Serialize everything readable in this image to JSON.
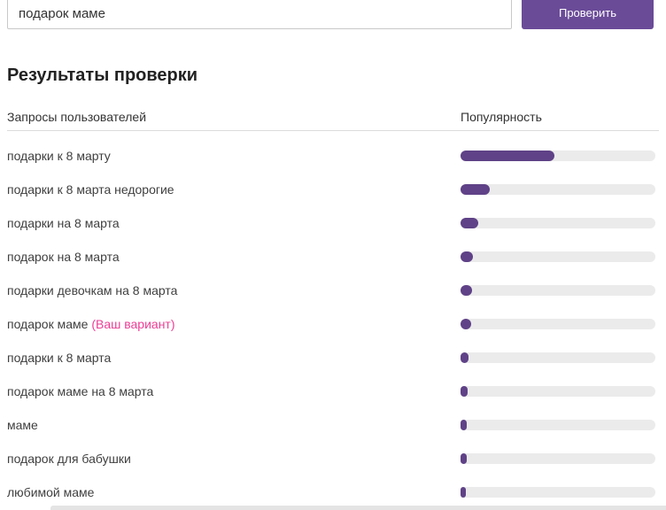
{
  "colors": {
    "button_purple": "#6a4b98",
    "bar_fill_purple": "#5f4287",
    "bar_track_gray": "#ebebeb",
    "variant_pink": "#ed3e96"
  },
  "search": {
    "value": "подарок маме",
    "button_label": "Проверить"
  },
  "results": {
    "title": "Результаты проверки",
    "columns": {
      "query": "Запросы пользователей",
      "popularity": "Популярность"
    },
    "rows": [
      {
        "query": "подарки к 8 марту",
        "popularity_pct": 48
      },
      {
        "query": "подарки к 8 марта недорогие",
        "popularity_pct": 15
      },
      {
        "query": "подарки на 8 марта",
        "popularity_pct": 9
      },
      {
        "query": "подарок на 8 марта",
        "popularity_pct": 6.4
      },
      {
        "query": "подарки девочкам на 8 марта",
        "popularity_pct": 5.9
      },
      {
        "query": "подарок маме",
        "variant_label": "(Ваш вариант)",
        "popularity_pct": 5.5
      },
      {
        "query": "подарки к 8 марта",
        "popularity_pct": 4.1
      },
      {
        "query": "подарок маме на 8 марта",
        "popularity_pct": 3.7
      },
      {
        "query": "маме",
        "popularity_pct": 3.4
      },
      {
        "query": "подарок для бабушки",
        "popularity_pct": 3.0
      },
      {
        "query": "любимой маме",
        "popularity_pct": 2.7
      }
    ]
  }
}
